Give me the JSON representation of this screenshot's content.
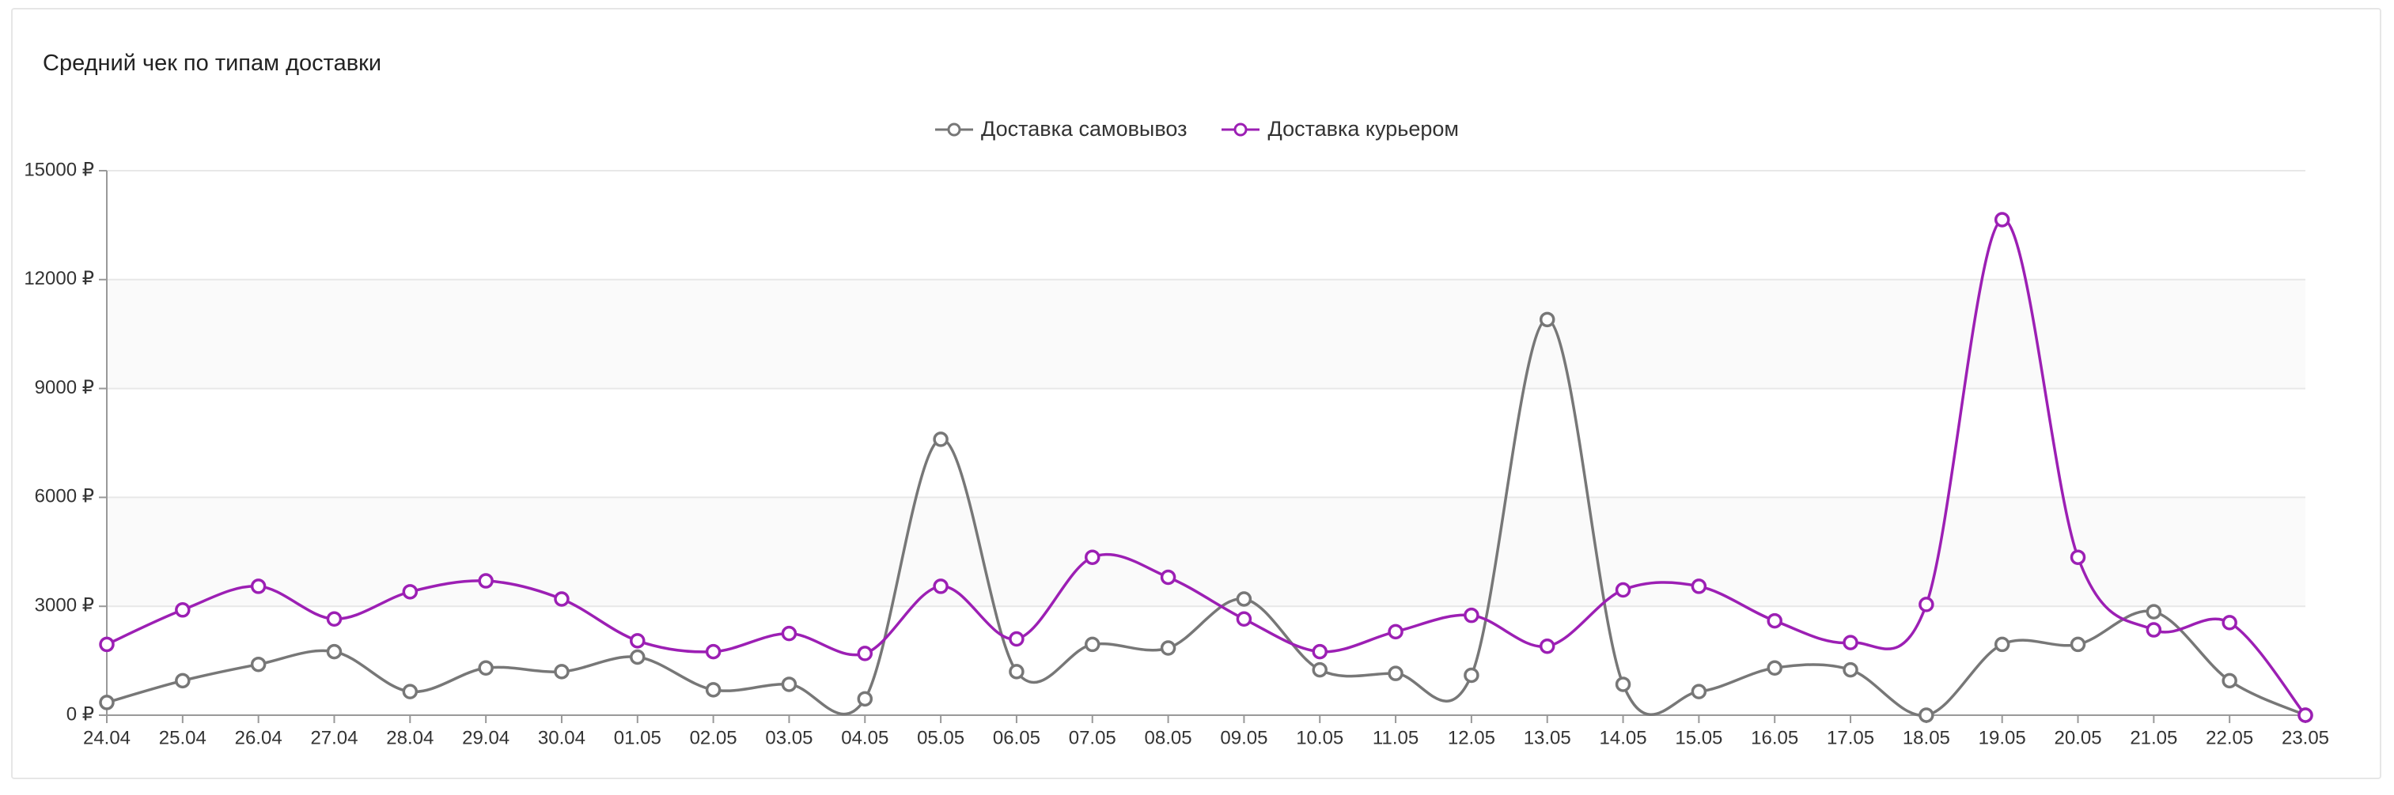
{
  "chart_data": {
    "type": "line",
    "title": "Средний чек по типам доставки",
    "categories": [
      "24.04",
      "25.04",
      "26.04",
      "27.04",
      "28.04",
      "29.04",
      "30.04",
      "01.05",
      "02.05",
      "03.05",
      "04.05",
      "05.05",
      "06.05",
      "07.05",
      "08.05",
      "09.05",
      "10.05",
      "11.05",
      "12.05",
      "13.05",
      "14.05",
      "15.05",
      "16.05",
      "17.05",
      "18.05",
      "19.05",
      "20.05",
      "21.05",
      "22.05",
      "23.05"
    ],
    "series": [
      {
        "name": "Доставка самовывоз",
        "color": "#777777",
        "values": [
          350,
          950,
          1400,
          1750,
          650,
          1300,
          1200,
          1600,
          700,
          850,
          450,
          7600,
          1200,
          1950,
          1850,
          3200,
          1250,
          1150,
          1100,
          10900,
          850,
          650,
          1300,
          1250,
          0,
          1950,
          1950,
          2850,
          950,
          0
        ]
      },
      {
        "name": "Доставка курьером",
        "color": "#9c1fb4",
        "values": [
          1950,
          2900,
          3550,
          2650,
          3400,
          3700,
          3200,
          2050,
          1750,
          2250,
          1700,
          3550,
          2100,
          4350,
          3800,
          2650,
          1750,
          2300,
          2750,
          1900,
          3450,
          3550,
          2600,
          2000,
          3050,
          13650,
          4350,
          2350,
          2550,
          0
        ]
      }
    ],
    "ylim": [
      0,
      15000
    ],
    "yticks": [
      {
        "value": 0,
        "label": "0 ₽"
      },
      {
        "value": 3000,
        "label": "3000 ₽"
      },
      {
        "value": 6000,
        "label": "6000 ₽"
      },
      {
        "value": 9000,
        "label": "9000 ₽"
      },
      {
        "value": 12000,
        "label": "12000 ₽"
      },
      {
        "value": 15000,
        "label": "15000 ₽"
      }
    ],
    "grid": true
  }
}
